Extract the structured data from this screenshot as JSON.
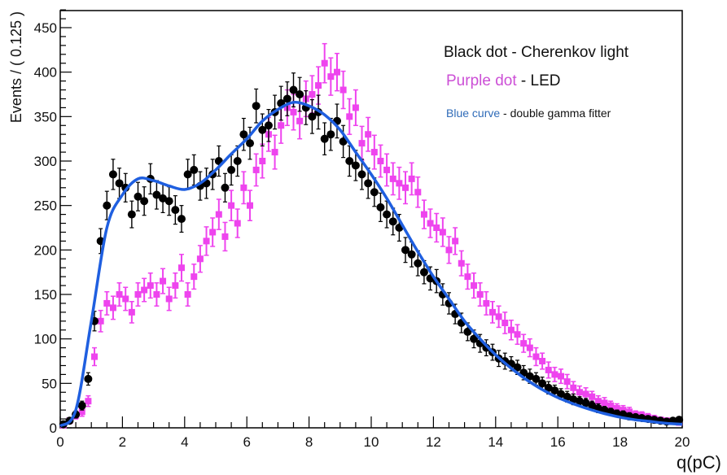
{
  "chart_data": {
    "type": "scatter",
    "title": "",
    "xlabel": "q(pC)",
    "ylabel": "Events / ( 0.125 )",
    "xlim": [
      0,
      20
    ],
    "ylim": [
      0,
      470
    ],
    "x_ticks": [
      0,
      2,
      4,
      6,
      8,
      10,
      12,
      14,
      16,
      18,
      20
    ],
    "y_ticks": [
      0,
      50,
      100,
      150,
      200,
      250,
      300,
      350,
      400,
      450
    ],
    "grid": false,
    "colors": {
      "cherenkov": "#000000",
      "led": "#ee44ee",
      "fit": "#1f5fe0",
      "legend_purple": "#cc4fd6",
      "legend_blue": "#2f6bb8"
    },
    "legend": [
      {
        "colored": "Black dot",
        "rest": " - Cherenkov light",
        "color": "#111111"
      },
      {
        "colored": "Purple dot",
        "rest": " - LED",
        "color": "#cc4fd6"
      },
      {
        "colored": "Blue curve",
        "rest": " - double gamma fitter",
        "color": "#2f6bb8"
      }
    ],
    "series": [
      {
        "name": "Cherenkov light",
        "style": "black-dots",
        "x": [
          0.1,
          0.3,
          0.5,
          0.7,
          0.9,
          1.1,
          1.3,
          1.5,
          1.7,
          1.9,
          2.1,
          2.3,
          2.5,
          2.7,
          2.9,
          3.1,
          3.3,
          3.5,
          3.7,
          3.9,
          4.1,
          4.3,
          4.5,
          4.7,
          4.9,
          5.1,
          5.3,
          5.5,
          5.7,
          5.9,
          6.1,
          6.3,
          6.5,
          6.7,
          6.9,
          7.1,
          7.3,
          7.5,
          7.7,
          7.9,
          8.1,
          8.3,
          8.5,
          8.7,
          8.9,
          9.1,
          9.3,
          9.5,
          9.7,
          9.9,
          10.1,
          10.3,
          10.5,
          10.7,
          10.9,
          11.1,
          11.3,
          11.5,
          11.7,
          11.9,
          12.1,
          12.3,
          12.5,
          12.7,
          12.9,
          13.1,
          13.3,
          13.5,
          13.7,
          13.9,
          14.1,
          14.3,
          14.5,
          14.7,
          14.9,
          15.1,
          15.3,
          15.5,
          15.7,
          15.9,
          16.1,
          16.3,
          16.5,
          16.7,
          16.9,
          17.1,
          17.3,
          17.5,
          17.7,
          17.9,
          18.1,
          18.3,
          18.5,
          18.7,
          18.9,
          19.1,
          19.3,
          19.5,
          19.7,
          19.9
        ],
        "y": [
          4,
          8,
          15,
          25,
          55,
          120,
          210,
          250,
          285,
          275,
          270,
          240,
          260,
          255,
          280,
          262,
          258,
          255,
          245,
          235,
          285,
          290,
          272,
          275,
          285,
          300,
          270,
          290,
          300,
          330,
          320,
          362,
          335,
          340,
          355,
          365,
          370,
          380,
          375,
          360,
          350,
          355,
          325,
          330,
          345,
          322,
          300,
          295,
          285,
          275,
          265,
          248,
          240,
          232,
          225,
          200,
          195,
          185,
          175,
          168,
          165,
          150,
          140,
          128,
          118,
          108,
          100,
          95,
          90,
          85,
          78,
          75,
          72,
          68,
          62,
          58,
          55,
          50,
          45,
          42,
          38,
          35,
          32,
          30,
          28,
          25,
          22,
          20,
          18,
          16,
          15,
          13,
          12,
          11,
          10,
          9,
          8,
          7,
          8,
          9
        ],
        "errors": [
          2,
          3,
          4,
          5,
          7,
          11,
          14,
          16,
          17,
          17,
          16,
          15,
          16,
          16,
          17,
          16,
          16,
          16,
          16,
          15,
          17,
          17,
          16,
          17,
          17,
          17,
          16,
          17,
          17,
          18,
          18,
          19,
          18,
          18,
          19,
          19,
          19,
          19,
          19,
          19,
          19,
          19,
          18,
          18,
          19,
          18,
          17,
          17,
          17,
          17,
          16,
          16,
          15,
          15,
          15,
          14,
          14,
          14,
          13,
          13,
          13,
          12,
          12,
          11,
          11,
          10,
          10,
          10,
          9,
          9,
          9,
          9,
          8,
          8,
          8,
          8,
          7,
          7,
          7,
          6,
          6,
          6,
          6,
          5,
          5,
          5,
          5,
          4,
          4,
          4,
          4,
          4,
          3,
          3,
          3,
          3,
          3,
          3,
          3,
          3
        ]
      },
      {
        "name": "LED",
        "style": "purple-dots",
        "x": [
          0.1,
          0.3,
          0.5,
          0.7,
          0.9,
          1.1,
          1.3,
          1.5,
          1.7,
          1.9,
          2.1,
          2.3,
          2.5,
          2.7,
          2.9,
          3.1,
          3.3,
          3.5,
          3.7,
          3.9,
          4.1,
          4.3,
          4.5,
          4.7,
          4.9,
          5.1,
          5.3,
          5.5,
          5.7,
          5.9,
          6.1,
          6.3,
          6.5,
          6.7,
          6.9,
          7.1,
          7.3,
          7.5,
          7.7,
          7.9,
          8.1,
          8.3,
          8.5,
          8.7,
          8.9,
          9.1,
          9.3,
          9.5,
          9.7,
          9.9,
          10.1,
          10.3,
          10.5,
          10.7,
          10.9,
          11.1,
          11.3,
          11.5,
          11.7,
          11.9,
          12.1,
          12.3,
          12.5,
          12.7,
          12.9,
          13.1,
          13.3,
          13.5,
          13.7,
          13.9,
          14.1,
          14.3,
          14.5,
          14.7,
          14.9,
          15.1,
          15.3,
          15.5,
          15.7,
          15.9,
          16.1,
          16.3,
          16.5,
          16.7,
          16.9,
          17.1,
          17.3,
          17.5,
          17.7,
          17.9,
          18.1,
          18.3,
          18.5,
          18.7,
          18.9,
          19.1,
          19.3,
          19.5,
          19.7,
          19.9
        ],
        "y": [
          3,
          8,
          14,
          18,
          30,
          80,
          120,
          140,
          135,
          150,
          145,
          130,
          150,
          155,
          160,
          150,
          165,
          145,
          160,
          180,
          150,
          170,
          190,
          210,
          220,
          240,
          215,
          250,
          230,
          270,
          250,
          290,
          300,
          330,
          310,
          340,
          360,
          355,
          345,
          370,
          375,
          385,
          410,
          395,
          400,
          380,
          350,
          360,
          320,
          330,
          310,
          300,
          290,
          280,
          275,
          270,
          280,
          265,
          240,
          230,
          225,
          220,
          200,
          210,
          185,
          170,
          160,
          150,
          140,
          130,
          125,
          118,
          110,
          105,
          95,
          90,
          80,
          75,
          65,
          60,
          58,
          52,
          45,
          40,
          38,
          35,
          30,
          28,
          25,
          22,
          20,
          18,
          15,
          14,
          12,
          10,
          9,
          8,
          7,
          6
        ],
        "errors": [
          2,
          3,
          4,
          5,
          6,
          10,
          12,
          13,
          13,
          13,
          13,
          12,
          13,
          13,
          14,
          13,
          14,
          13,
          14,
          15,
          13,
          14,
          15,
          16,
          16,
          17,
          16,
          17,
          16,
          18,
          17,
          18,
          19,
          19,
          19,
          20,
          20,
          20,
          20,
          20,
          21,
          21,
          22,
          21,
          21,
          21,
          20,
          20,
          19,
          19,
          19,
          18,
          18,
          18,
          18,
          18,
          18,
          17,
          16,
          16,
          16,
          16,
          15,
          15,
          14,
          14,
          14,
          13,
          13,
          12,
          12,
          12,
          11,
          11,
          10,
          10,
          10,
          9,
          9,
          8,
          8,
          8,
          7,
          7,
          7,
          6,
          6,
          6,
          5,
          5,
          5,
          5,
          4,
          4,
          4,
          4,
          3,
          3,
          3,
          3
        ]
      },
      {
        "name": "double gamma fitter",
        "style": "blue-curve",
        "x": [
          0,
          0.5,
          1.0,
          1.5,
          2.0,
          2.5,
          3.0,
          3.5,
          4.0,
          4.5,
          5.0,
          5.5,
          6.0,
          6.5,
          7.0,
          7.5,
          8.0,
          8.5,
          9.0,
          9.5,
          10.0,
          10.5,
          11.0,
          11.5,
          12.0,
          12.5,
          13.0,
          13.5,
          14.0,
          14.5,
          15.0,
          15.5,
          16.0,
          16.5,
          17.0,
          17.5,
          18.0,
          18.5,
          19.0,
          19.5,
          20.0
        ],
        "y": [
          2,
          20,
          120,
          225,
          262,
          280,
          278,
          272,
          268,
          275,
          290,
          308,
          325,
          345,
          358,
          366,
          362,
          352,
          335,
          310,
          285,
          258,
          228,
          198,
          170,
          145,
          120,
          100,
          82,
          67,
          54,
          43,
          34,
          27,
          21,
          16,
          12,
          9,
          7,
          5,
          4
        ]
      }
    ]
  }
}
